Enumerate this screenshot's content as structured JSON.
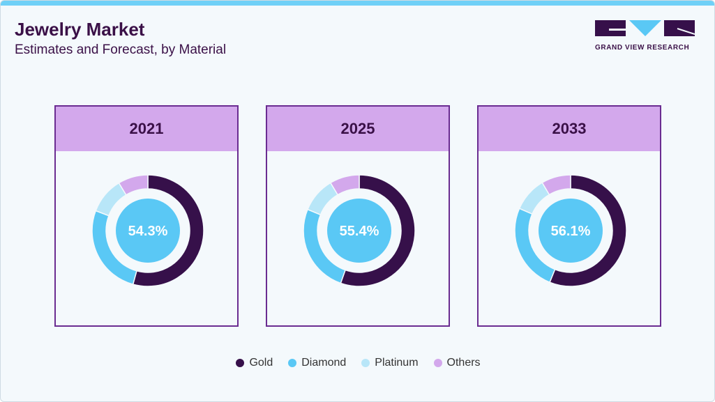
{
  "header": {
    "title": "Jewelry Market",
    "subtitle": "Estimates and Forecast, by Material"
  },
  "logo": {
    "text": "GRAND VIEW RESEARCH"
  },
  "colors": {
    "Gold": "#36104a",
    "Diamond": "#5ac8f5",
    "Platinum": "#b8e6f8",
    "Others": "#d3a8ec",
    "border": "#6a2c91",
    "header": "#d3a8ec"
  },
  "chart_data": [
    {
      "type": "pie",
      "title": "2021",
      "center_label": "54.3%",
      "categories": [
        "Gold",
        "Diamond",
        "Platinum",
        "Others"
      ],
      "values": [
        54.3,
        26.5,
        10.5,
        8.7
      ]
    },
    {
      "type": "pie",
      "title": "2025",
      "center_label": "55.4%",
      "categories": [
        "Gold",
        "Diamond",
        "Platinum",
        "Others"
      ],
      "values": [
        55.4,
        25.8,
        10.2,
        8.6
      ]
    },
    {
      "type": "pie",
      "title": "2033",
      "center_label": "56.1%",
      "categories": [
        "Gold",
        "Diamond",
        "Platinum",
        "Others"
      ],
      "values": [
        56.1,
        25.4,
        10.0,
        8.5
      ]
    }
  ],
  "legend": [
    "Gold",
    "Diamond",
    "Platinum",
    "Others"
  ]
}
